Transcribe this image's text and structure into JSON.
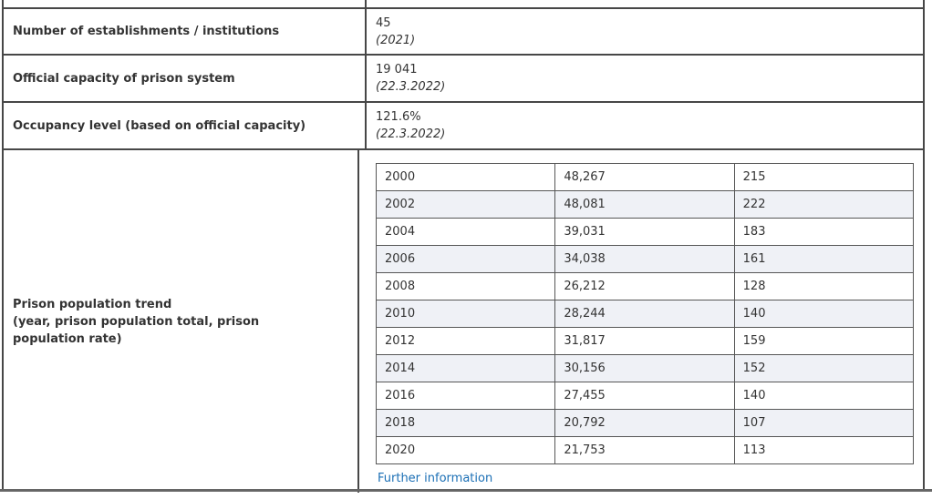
{
  "stats": {
    "rows": [
      {
        "label": "Number of establishments / institutions",
        "value": "45",
        "date": "(2021)"
      },
      {
        "label": "Official capacity of prison system",
        "value": "19 041",
        "date": "(22.3.2022)"
      },
      {
        "label": "Occupancy level (based on official capacity)",
        "value": "121.6%",
        "date": "(22.3.2022)"
      }
    ]
  },
  "trend": {
    "label": "Prison population trend",
    "label_sub": "(year, prison population total, prison population rate)",
    "link_label": "Further information",
    "rows": [
      {
        "year": "2000",
        "total": "48,267",
        "rate": "215"
      },
      {
        "year": "2002",
        "total": "48,081",
        "rate": "222"
      },
      {
        "year": "2004",
        "total": "39,031",
        "rate": "183"
      },
      {
        "year": "2006",
        "total": "34,038",
        "rate": "161"
      },
      {
        "year": "2008",
        "total": "26,212",
        "rate": "128"
      },
      {
        "year": "2010",
        "total": "28,244",
        "rate": "140"
      },
      {
        "year": "2012",
        "total": "31,817",
        "rate": "159"
      },
      {
        "year": "2014",
        "total": "30,156",
        "rate": "152"
      },
      {
        "year": "2016",
        "total": "27,455",
        "rate": "140"
      },
      {
        "year": "2018",
        "total": "20,792",
        "rate": "107"
      },
      {
        "year": "2020",
        "total": "21,753",
        "rate": "113"
      }
    ]
  },
  "colors": {
    "link": "#1b6fb5",
    "row_stripe": "#eff1f6",
    "border": "#474747",
    "text": "#333333"
  }
}
